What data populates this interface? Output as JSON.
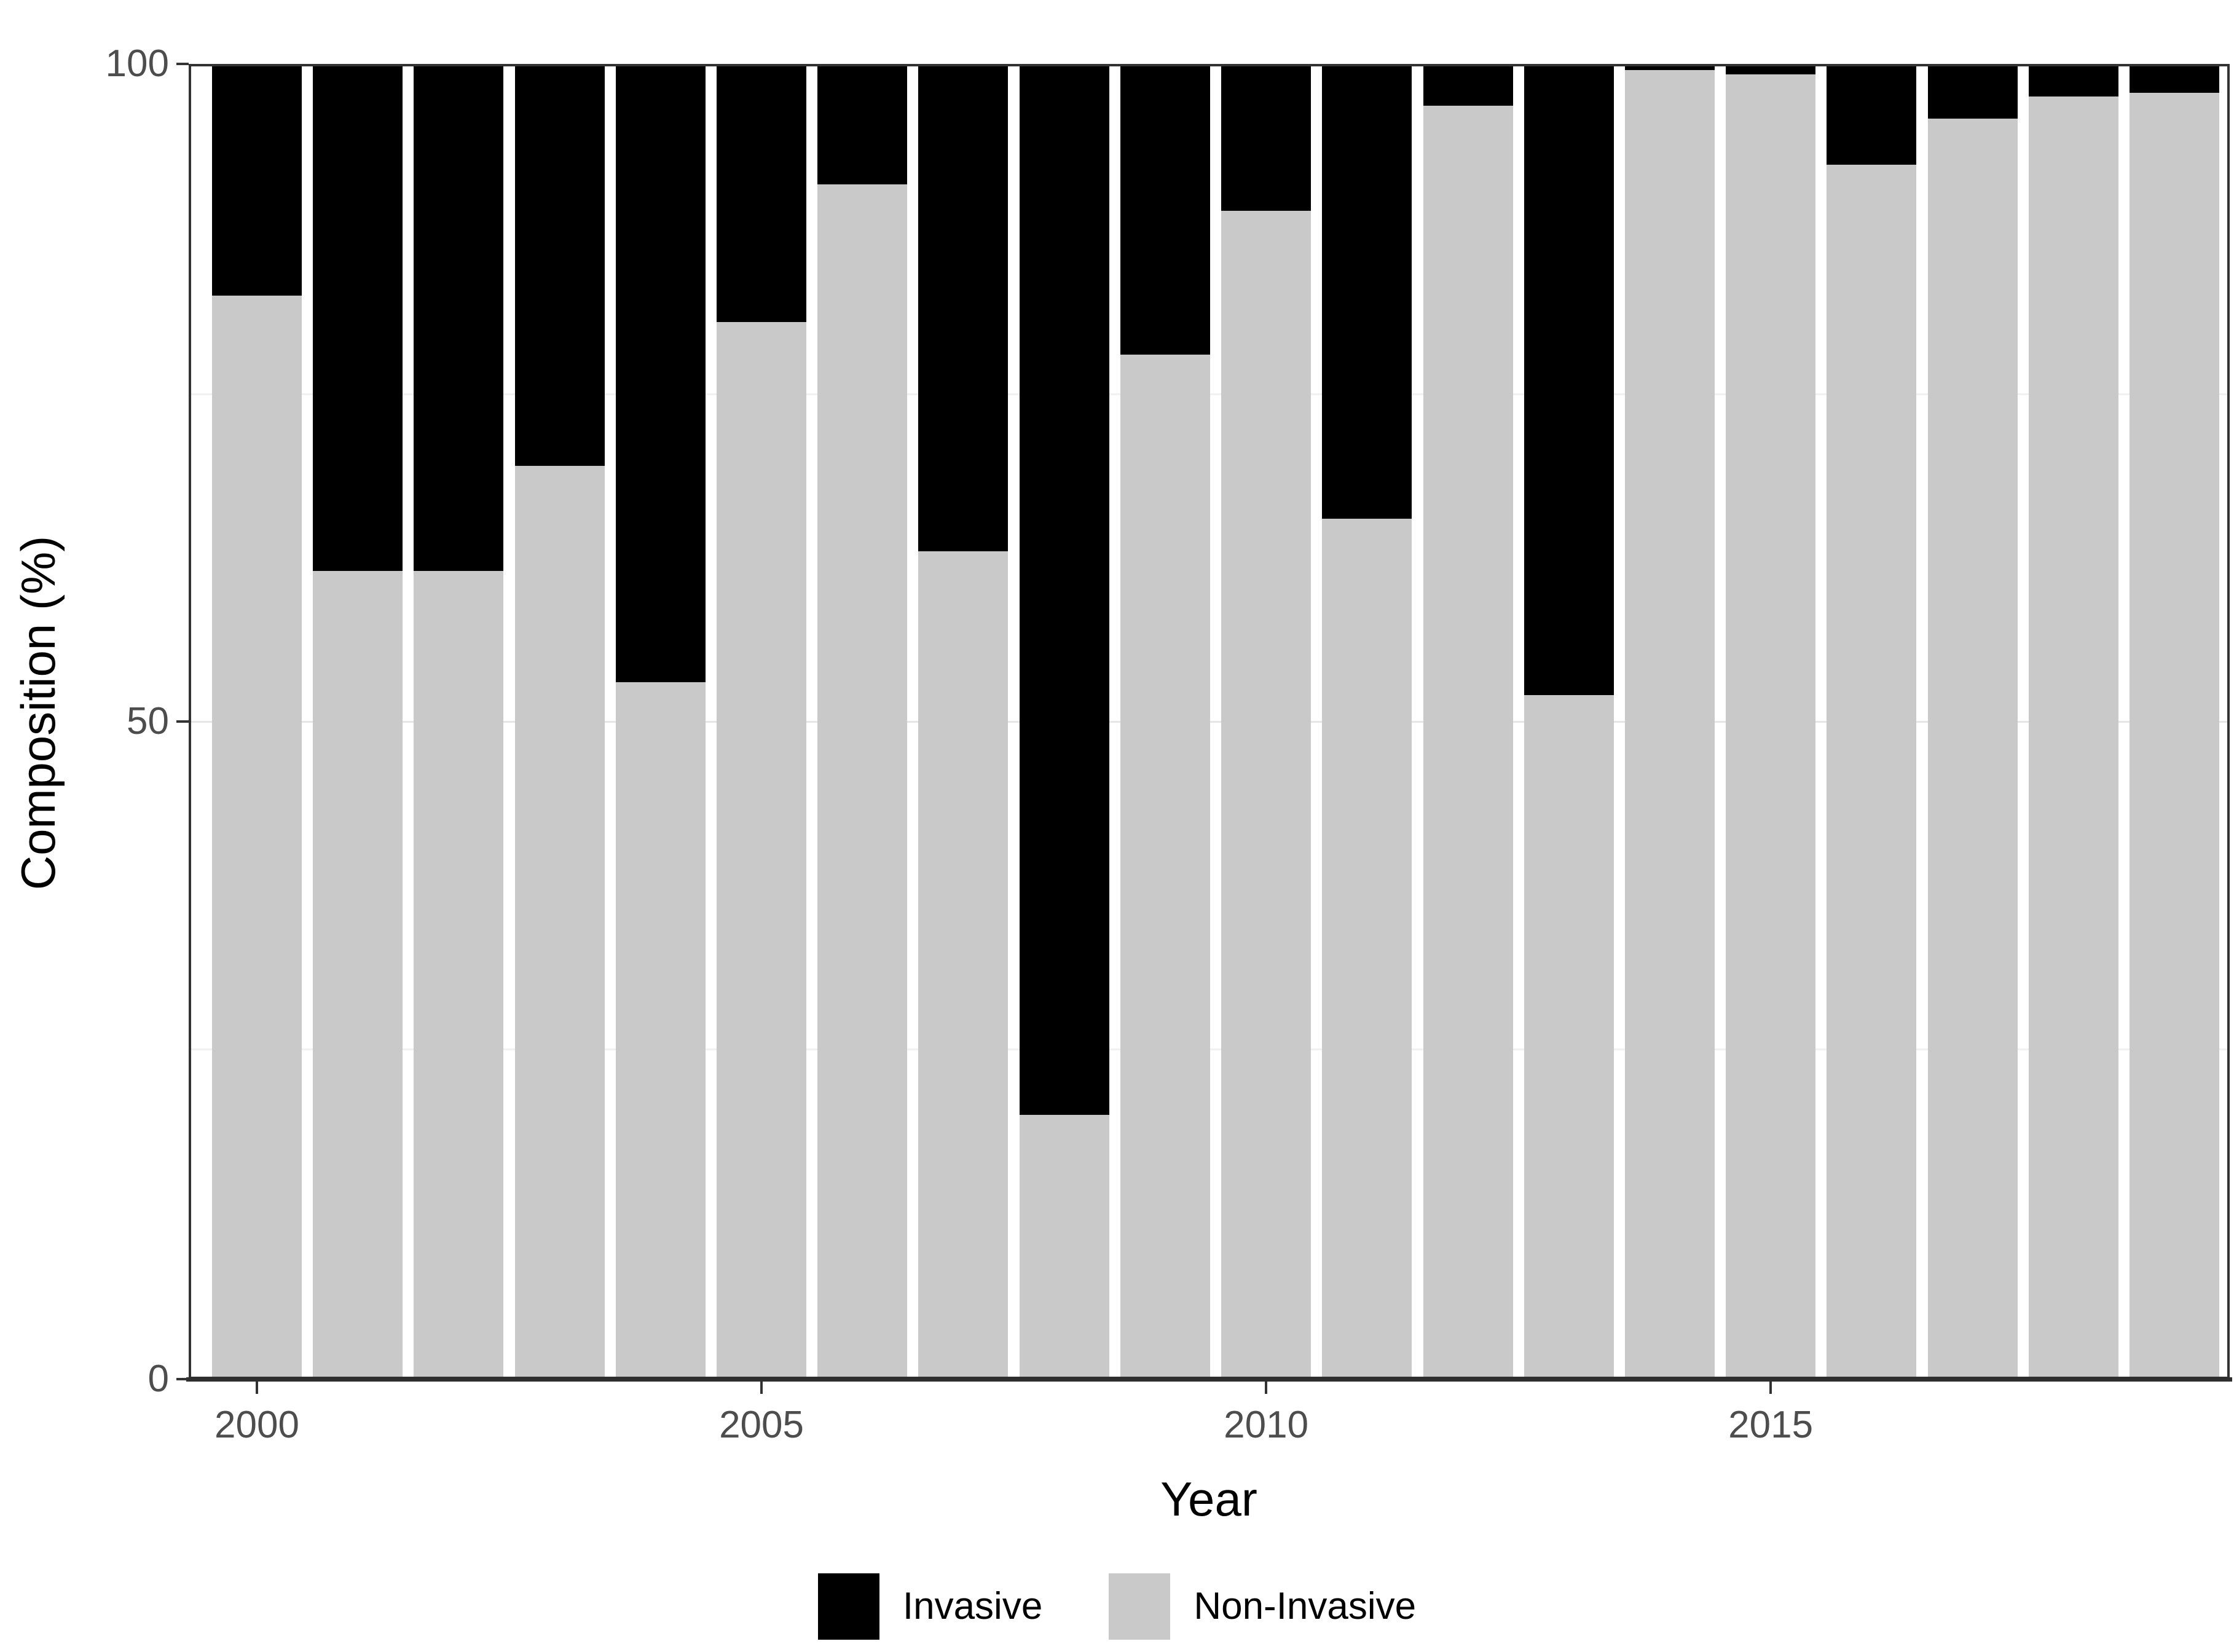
{
  "chart_data": {
    "type": "bar",
    "stacked": true,
    "percent_stacked": true,
    "title": "",
    "xlabel": "Year",
    "ylabel": "Composition (%)",
    "ylim": [
      0,
      100
    ],
    "grid": "on",
    "legend_position": "bottom",
    "categories": [
      2000,
      2001,
      2002,
      2003,
      2004,
      2005,
      2006,
      2007,
      2008,
      2009,
      2010,
      2011,
      2012,
      2013,
      2014,
      2015,
      2016,
      2017,
      2018,
      2019
    ],
    "series": [
      {
        "name": "Invasive",
        "color": "#000000",
        "values": [
          17.5,
          38.5,
          38.5,
          30.5,
          47.0,
          19.5,
          9.0,
          37.0,
          80.0,
          22.0,
          11.0,
          34.5,
          3.0,
          48.0,
          0.3,
          0.6,
          7.5,
          4.0,
          2.3,
          2.0
        ]
      },
      {
        "name": "Non-Invasive",
        "color": "#C9C9C9",
        "values": [
          82.5,
          61.5,
          61.5,
          69.5,
          53.0,
          80.5,
          91.0,
          63.0,
          20.0,
          78.0,
          89.0,
          65.5,
          97.0,
          52.0,
          99.7,
          99.4,
          92.5,
          96.0,
          97.7,
          98.0
        ]
      }
    ],
    "y_ticks": [
      {
        "value": 0,
        "label": "0"
      },
      {
        "value": 50,
        "label": "50"
      },
      {
        "value": 100,
        "label": "100"
      }
    ],
    "y_major_gridlines": [
      50
    ],
    "y_minor_gridlines": [
      25,
      75
    ],
    "x_ticks": [
      {
        "index": 0,
        "label": "2000"
      },
      {
        "index": 5,
        "label": "2005"
      },
      {
        "index": 10,
        "label": "2010"
      },
      {
        "index": 15,
        "label": "2015"
      }
    ],
    "legend": {
      "entries": [
        {
          "label": "Invasive",
          "color": "#000000"
        },
        {
          "label": "Non-Invasive",
          "color": "#C9C9C9"
        }
      ]
    }
  }
}
